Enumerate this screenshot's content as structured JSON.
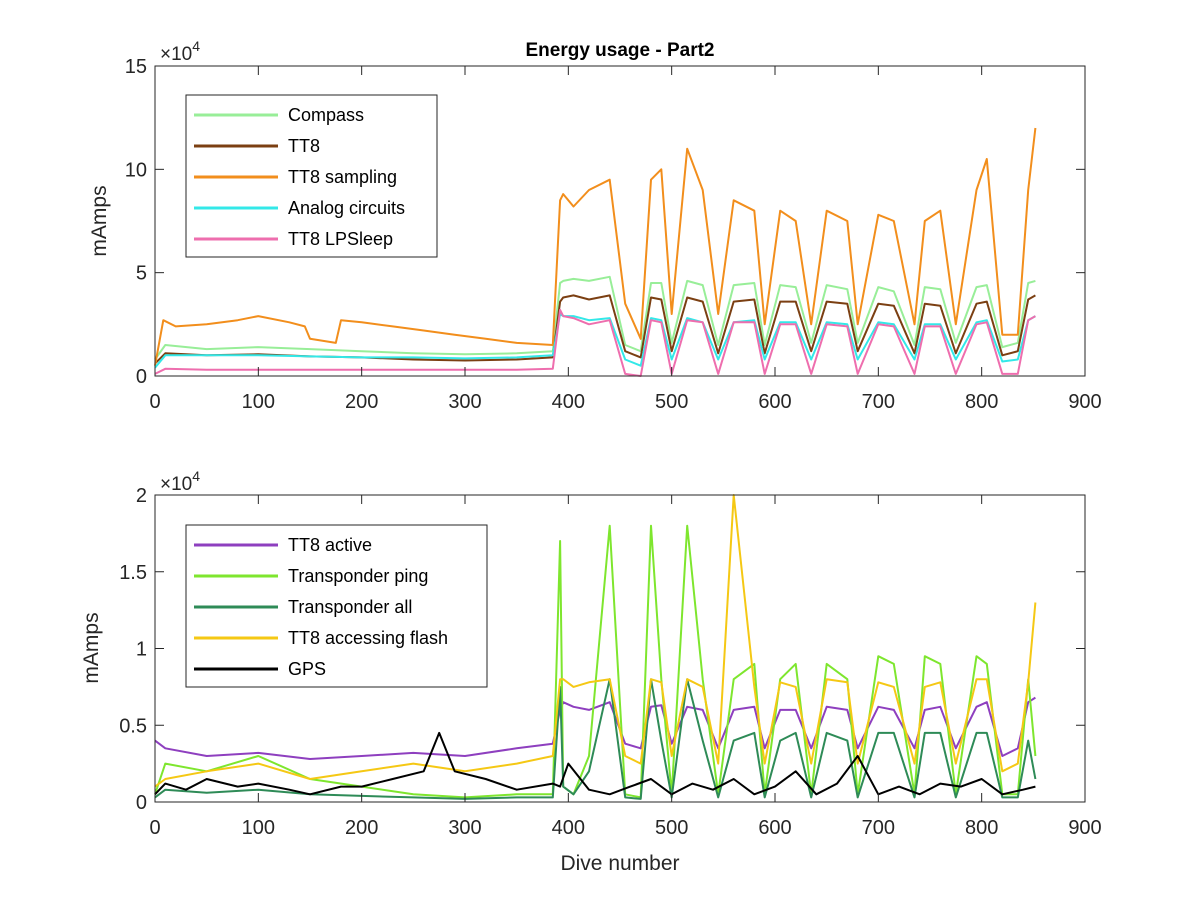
{
  "chart_data": [
    {
      "type": "line",
      "title": "Energy usage - Part2",
      "xlabel": "",
      "ylabel": "mAmps",
      "xlim": [
        0,
        900
      ],
      "ylim": [
        0,
        15
      ],
      "y_exponent_label": "×10",
      "y_exponent_power": "4",
      "xticks": [
        "0",
        "100",
        "200",
        "300",
        "400",
        "500",
        "600",
        "700",
        "800",
        "900"
      ],
      "yticks": [
        "0",
        "5",
        "10",
        "15"
      ],
      "xtick_values": [
        0,
        100,
        200,
        300,
        400,
        500,
        600,
        700,
        800,
        900
      ],
      "ytick_values": [
        0,
        5,
        10,
        15
      ],
      "legend_position": "top-left",
      "series": [
        {
          "name": "Compass",
          "color": "#98ee98",
          "x": [
            0,
            10,
            50,
            100,
            150,
            200,
            250,
            300,
            350,
            385,
            392,
            395,
            405,
            420,
            440,
            455,
            470,
            480,
            490,
            500,
            515,
            530,
            545,
            560,
            580,
            590,
            605,
            620,
            635,
            650,
            670,
            680,
            700,
            715,
            735,
            745,
            760,
            775,
            795,
            805,
            820,
            835,
            845,
            852
          ],
          "y": [
            0.8,
            1.5,
            1.3,
            1.4,
            1.3,
            1.2,
            1.1,
            1.05,
            1.1,
            1.2,
            4.5,
            4.6,
            4.7,
            4.6,
            4.8,
            1.5,
            1.2,
            4.5,
            4.5,
            1.6,
            4.6,
            4.4,
            1.5,
            4.4,
            4.5,
            1.5,
            4.4,
            4.3,
            1.6,
            4.4,
            4.2,
            1.6,
            4.3,
            4.1,
            1.5,
            4.3,
            4.2,
            1.6,
            4.3,
            4.4,
            1.4,
            1.6,
            4.5,
            4.6
          ]
        },
        {
          "name": "TT8",
          "color": "#7b3f12",
          "x": [
            0,
            10,
            50,
            100,
            150,
            200,
            250,
            300,
            350,
            385,
            392,
            395,
            405,
            420,
            440,
            455,
            470,
            480,
            490,
            500,
            515,
            530,
            545,
            560,
            580,
            590,
            605,
            620,
            635,
            650,
            670,
            680,
            700,
            715,
            735,
            745,
            760,
            775,
            795,
            805,
            820,
            835,
            845,
            852
          ],
          "y": [
            0.6,
            1.1,
            1.0,
            1.05,
            0.95,
            0.9,
            0.8,
            0.75,
            0.8,
            0.9,
            3.6,
            3.8,
            3.9,
            3.7,
            3.9,
            1.2,
            0.9,
            3.8,
            3.7,
            1.2,
            3.8,
            3.6,
            1.1,
            3.6,
            3.7,
            1.1,
            3.6,
            3.6,
            1.2,
            3.6,
            3.5,
            1.2,
            3.5,
            3.4,
            1.1,
            3.5,
            3.4,
            1.1,
            3.5,
            3.6,
            1.0,
            1.2,
            3.7,
            3.9
          ]
        },
        {
          "name": "TT8 sampling",
          "color": "#f28e1c",
          "x": [
            0,
            8,
            20,
            50,
            80,
            100,
            130,
            145,
            150,
            175,
            180,
            200,
            230,
            260,
            290,
            320,
            350,
            385,
            392,
            395,
            405,
            420,
            440,
            455,
            470,
            480,
            490,
            500,
            515,
            530,
            545,
            560,
            580,
            590,
            605,
            620,
            635,
            650,
            670,
            680,
            700,
            715,
            735,
            745,
            760,
            775,
            795,
            805,
            820,
            835,
            845,
            852
          ],
          "y": [
            0.5,
            2.7,
            2.4,
            2.5,
            2.7,
            2.9,
            2.6,
            2.4,
            1.8,
            1.6,
            2.7,
            2.6,
            2.4,
            2.2,
            2.0,
            1.8,
            1.6,
            1.5,
            8.5,
            8.8,
            8.2,
            9.0,
            9.5,
            3.5,
            1.8,
            9.5,
            10.0,
            3.0,
            11.0,
            9.0,
            3.0,
            8.5,
            8.0,
            2.5,
            8.0,
            7.5,
            2.5,
            8.0,
            7.5,
            2.5,
            7.8,
            7.5,
            2.5,
            7.5,
            8.0,
            2.5,
            9.0,
            10.5,
            2.0,
            2.0,
            9.0,
            12.0
          ]
        },
        {
          "name": "Analog circuits",
          "color": "#33e8e8",
          "x": [
            0,
            10,
            50,
            100,
            150,
            200,
            250,
            300,
            350,
            385,
            392,
            395,
            405,
            420,
            440,
            455,
            470,
            480,
            490,
            500,
            515,
            530,
            545,
            560,
            580,
            590,
            605,
            620,
            635,
            650,
            670,
            680,
            700,
            715,
            735,
            745,
            760,
            775,
            795,
            805,
            820,
            835,
            845,
            852
          ],
          "y": [
            0.4,
            1.0,
            1.0,
            1.0,
            0.95,
            0.9,
            0.9,
            0.85,
            0.9,
            1.0,
            3.0,
            2.9,
            2.9,
            2.7,
            2.8,
            0.8,
            0.5,
            2.8,
            2.7,
            0.8,
            2.8,
            2.6,
            0.8,
            2.6,
            2.7,
            0.8,
            2.6,
            2.6,
            0.8,
            2.6,
            2.5,
            0.8,
            2.6,
            2.5,
            0.8,
            2.5,
            2.5,
            0.8,
            2.6,
            2.7,
            0.7,
            0.8,
            2.7,
            2.9
          ]
        },
        {
          "name": "TT8 LPSleep",
          "color": "#ee6eae",
          "x": [
            0,
            10,
            50,
            100,
            150,
            200,
            250,
            300,
            350,
            385,
            392,
            395,
            405,
            420,
            440,
            455,
            470,
            480,
            490,
            500,
            515,
            530,
            545,
            560,
            580,
            590,
            605,
            620,
            635,
            650,
            670,
            680,
            700,
            715,
            735,
            745,
            760,
            775,
            795,
            805,
            820,
            835,
            845,
            852
          ],
          "y": [
            0.1,
            0.35,
            0.3,
            0.3,
            0.3,
            0.3,
            0.3,
            0.3,
            0.3,
            0.35,
            3.2,
            2.9,
            2.8,
            2.5,
            2.7,
            0.1,
            0.0,
            2.7,
            2.6,
            0.1,
            2.7,
            2.6,
            0.1,
            2.6,
            2.6,
            0.1,
            2.5,
            2.5,
            0.1,
            2.5,
            2.4,
            0.1,
            2.5,
            2.4,
            0.1,
            2.4,
            2.4,
            0.1,
            2.5,
            2.6,
            0.1,
            0.1,
            2.7,
            2.9
          ]
        }
      ]
    },
    {
      "type": "line",
      "title": "",
      "xlabel": "Dive number",
      "ylabel": "mAmps",
      "xlim": [
        0,
        900
      ],
      "ylim": [
        0,
        2
      ],
      "y_exponent_label": "×10",
      "y_exponent_power": "4",
      "xticks": [
        "0",
        "100",
        "200",
        "300",
        "400",
        "500",
        "600",
        "700",
        "800",
        "900"
      ],
      "yticks": [
        "0",
        "0.5",
        "1",
        "1.5",
        "2"
      ],
      "xtick_values": [
        0,
        100,
        200,
        300,
        400,
        500,
        600,
        700,
        800,
        900
      ],
      "ytick_values": [
        0,
        0.5,
        1,
        1.5,
        2
      ],
      "legend_position": "top-left",
      "series": [
        {
          "name": "TT8 active",
          "color": "#8e3fbf",
          "x": [
            0,
            10,
            50,
            100,
            150,
            200,
            250,
            300,
            350,
            385,
            392,
            395,
            405,
            420,
            440,
            455,
            470,
            480,
            490,
            500,
            515,
            530,
            545,
            560,
            580,
            590,
            605,
            620,
            635,
            650,
            670,
            680,
            700,
            715,
            735,
            745,
            760,
            775,
            795,
            805,
            820,
            835,
            845,
            852
          ],
          "y": [
            0.4,
            0.35,
            0.3,
            0.32,
            0.28,
            0.3,
            0.32,
            0.3,
            0.35,
            0.38,
            0.6,
            0.65,
            0.62,
            0.6,
            0.65,
            0.38,
            0.35,
            0.62,
            0.63,
            0.38,
            0.62,
            0.6,
            0.35,
            0.6,
            0.62,
            0.35,
            0.6,
            0.6,
            0.35,
            0.62,
            0.6,
            0.35,
            0.62,
            0.6,
            0.35,
            0.6,
            0.62,
            0.35,
            0.62,
            0.65,
            0.3,
            0.35,
            0.65,
            0.68
          ]
        },
        {
          "name": "Transponder ping",
          "color": "#7ee62e",
          "x": [
            0,
            10,
            50,
            100,
            150,
            200,
            250,
            300,
            350,
            385,
            392,
            395,
            405,
            420,
            440,
            455,
            470,
            480,
            490,
            500,
            515,
            530,
            545,
            560,
            580,
            590,
            605,
            620,
            635,
            650,
            670,
            680,
            700,
            715,
            735,
            745,
            760,
            775,
            795,
            805,
            820,
            835,
            845,
            852
          ],
          "y": [
            0.05,
            0.25,
            0.2,
            0.3,
            0.15,
            0.1,
            0.05,
            0.03,
            0.05,
            0.05,
            1.7,
            0.1,
            0.05,
            0.3,
            1.8,
            0.05,
            0.03,
            1.8,
            0.8,
            0.05,
            1.8,
            0.8,
            0.05,
            0.8,
            0.9,
            0.05,
            0.8,
            0.9,
            0.05,
            0.9,
            0.8,
            0.05,
            0.95,
            0.9,
            0.05,
            0.95,
            0.9,
            0.05,
            0.95,
            0.9,
            0.05,
            0.05,
            0.8,
            0.3
          ]
        },
        {
          "name": "Transponder all",
          "color": "#2e8b57",
          "x": [
            0,
            10,
            50,
            100,
            150,
            200,
            250,
            300,
            350,
            385,
            392,
            395,
            405,
            420,
            440,
            455,
            470,
            480,
            490,
            500,
            515,
            530,
            545,
            560,
            580,
            590,
            605,
            620,
            635,
            650,
            670,
            680,
            700,
            715,
            735,
            745,
            760,
            775,
            795,
            805,
            820,
            835,
            845,
            852
          ],
          "y": [
            0.03,
            0.08,
            0.06,
            0.08,
            0.05,
            0.04,
            0.03,
            0.02,
            0.03,
            0.03,
            0.75,
            0.1,
            0.05,
            0.2,
            0.8,
            0.03,
            0.02,
            0.8,
            0.4,
            0.03,
            0.8,
            0.4,
            0.03,
            0.4,
            0.45,
            0.03,
            0.4,
            0.45,
            0.03,
            0.45,
            0.4,
            0.03,
            0.45,
            0.45,
            0.03,
            0.45,
            0.45,
            0.03,
            0.45,
            0.45,
            0.03,
            0.03,
            0.4,
            0.15
          ]
        },
        {
          "name": "TT8 accessing flash",
          "color": "#f5c814",
          "x": [
            0,
            10,
            50,
            100,
            150,
            200,
            250,
            300,
            350,
            385,
            392,
            395,
            405,
            420,
            440,
            455,
            470,
            480,
            490,
            500,
            515,
            530,
            545,
            560,
            580,
            590,
            605,
            620,
            635,
            650,
            670,
            680,
            700,
            715,
            735,
            745,
            760,
            775,
            795,
            805,
            820,
            835,
            845,
            852
          ],
          "y": [
            0.1,
            0.15,
            0.2,
            0.25,
            0.15,
            0.2,
            0.25,
            0.2,
            0.25,
            0.3,
            0.8,
            0.8,
            0.75,
            0.78,
            0.8,
            0.3,
            0.25,
            0.8,
            0.78,
            0.3,
            0.8,
            0.75,
            0.25,
            2.0,
            0.75,
            0.25,
            0.78,
            0.75,
            0.25,
            0.8,
            0.78,
            0.25,
            0.78,
            0.75,
            0.25,
            0.75,
            0.78,
            0.25,
            0.8,
            0.8,
            0.2,
            0.25,
            0.78,
            1.3
          ]
        },
        {
          "name": "GPS",
          "color": "#000000",
          "x": [
            0,
            10,
            30,
            50,
            80,
            100,
            130,
            150,
            180,
            200,
            230,
            260,
            275,
            290,
            320,
            350,
            385,
            392,
            400,
            420,
            440,
            460,
            480,
            500,
            520,
            540,
            560,
            580,
            600,
            620,
            640,
            660,
            680,
            700,
            720,
            740,
            760,
            780,
            800,
            820,
            840,
            852
          ],
          "y": [
            0.05,
            0.12,
            0.08,
            0.15,
            0.1,
            0.12,
            0.08,
            0.05,
            0.1,
            0.1,
            0.15,
            0.2,
            0.45,
            0.2,
            0.15,
            0.08,
            0.12,
            0.1,
            0.25,
            0.08,
            0.05,
            0.1,
            0.15,
            0.05,
            0.12,
            0.08,
            0.15,
            0.05,
            0.1,
            0.2,
            0.05,
            0.12,
            0.3,
            0.05,
            0.1,
            0.05,
            0.12,
            0.1,
            0.15,
            0.05,
            0.08,
            0.1
          ]
        }
      ]
    }
  ]
}
